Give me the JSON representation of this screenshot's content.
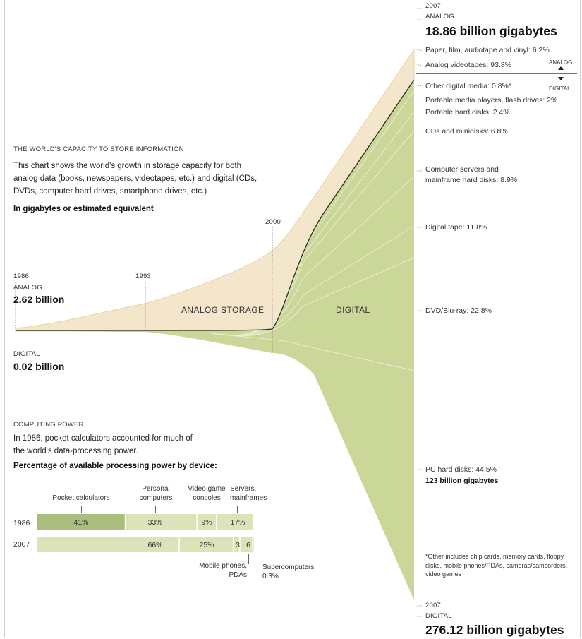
{
  "colors": {
    "analog_fill": "#f3e6cb",
    "analog_stroke": "#e8d4a8",
    "digital_fill": "#cbd699",
    "digital_line": "#2a2a18",
    "bar_dark": "#abbd7c",
    "bar_light": "#dbe3b9"
  },
  "storage": {
    "title": "THE WORLD'S CAPACITY TO STORE INFORMATION",
    "description": "This chart shows the world's growth in storage capacity for both analog data (books, newspapers, videotapes, etc.) and digital (CDs, DVDs, computer hard drives, smartphone drives, etc.)",
    "unit": "In gigabytes or estimated equivalent",
    "year_1986": "1986",
    "year_1993": "1993",
    "year_2000": "2000",
    "analog_word": "ANALOG",
    "digital_word": "DIGITAL",
    "start_analog_value": "2.62 billion",
    "start_digital_value": "0.02 billion",
    "analog_storage_label": "ANALOG STORAGE",
    "digital_label": "DIGITAL",
    "end_top_year": "2007",
    "end_top_word": "ANALOG",
    "end_analog_total": "18.86 billion gigabytes",
    "end_bottom_year": "2007",
    "end_bottom_word": "DIGITAL",
    "end_digital_total": "276.12 billion gigabytes",
    "divider_analog": "ANALOG",
    "divider_digital": "DIGITAL",
    "segments": [
      "Paper, film, audiotape and vinyl: 6.2%",
      "Analog videotapes: 93.8%",
      "Other digital media: 0.8%*",
      "Portable media players, flash drives: 2%",
      "Portable hard disks: 2.4%",
      "CDs and minidisks: 6.8%",
      "Computer servers and",
      "mainframe hard disks: 8.9%",
      "Digital tape: 11.8%",
      "DVD/Blu-ray: 22.8%",
      "PC hard disks: 44.5%"
    ],
    "pc_value": "123 billion gigabytes",
    "footnote": "*Other includes chip cards, memory cards, floppy disks, mobile phones/PDAs, cameras/camcorders, video games"
  },
  "computing": {
    "title": "COMPUTING POWER",
    "description": "In 1986, pocket calculators accounted for much of the world's data-processing power.",
    "subtitle": "Percentage of available processing power by device:",
    "headers": [
      "Pocket calculators",
      "Personal computers",
      "Video game consoles",
      "Servers, mainframes"
    ],
    "rows": [
      {
        "year": "1986",
        "labels": [
          "41%",
          "33%",
          "9%",
          "17%"
        ]
      },
      {
        "year": "2007",
        "labels": [
          "",
          "66%",
          "25%",
          "3",
          "6"
        ]
      }
    ],
    "mobile_label": "Mobile phones, PDAs",
    "super_label": "Supercomputers 0.3%"
  },
  "chart_data": [
    {
      "type": "area",
      "title": "THE WORLD'S CAPACITY TO STORE INFORMATION",
      "xlabel": "",
      "ylabel": "In gigabytes or estimated equivalent",
      "x": [
        1986,
        1993,
        2000,
        2007
      ],
      "series": [
        {
          "name": "ANALOG",
          "values_known": {
            "1986": 2.62,
            "2007": 18.86
          },
          "unit": "billion gigabytes"
        },
        {
          "name": "DIGITAL",
          "values_known": {
            "1986": 0.02,
            "2007": 276.12
          },
          "unit": "billion gigabytes"
        }
      ],
      "analog_2007_breakdown": [
        {
          "category": "Paper, film, audiotape and vinyl",
          "percent": 6.2
        },
        {
          "category": "Analog videotapes",
          "percent": 93.8
        }
      ],
      "digital_2007_breakdown": [
        {
          "category": "Other digital media",
          "percent": 0.8
        },
        {
          "category": "Portable media players, flash drives",
          "percent": 2
        },
        {
          "category": "Portable hard disks",
          "percent": 2.4
        },
        {
          "category": "CDs and minidisks",
          "percent": 6.8
        },
        {
          "category": "Computer servers and mainframe hard disks",
          "percent": 8.9
        },
        {
          "category": "Digital tape",
          "percent": 11.8
        },
        {
          "category": "DVD/Blu-ray",
          "percent": 22.8
        },
        {
          "category": "PC hard disks",
          "percent": 44.5
        }
      ]
    },
    {
      "type": "bar",
      "title": "COMPUTING POWER",
      "stacked": true,
      "orientation": "horizontal",
      "categories": [
        "1986",
        "2007"
      ],
      "series": [
        {
          "name": "Pocket calculators",
          "values": [
            41,
            0
          ]
        },
        {
          "name": "Personal computers",
          "values": [
            33,
            66
          ]
        },
        {
          "name": "Video game consoles",
          "values": [
            9,
            25
          ]
        },
        {
          "name": "Servers, mainframes",
          "values": [
            17,
            3
          ]
        },
        {
          "name": "Mobile phones, PDAs",
          "values": [
            0,
            6
          ]
        },
        {
          "name": "Supercomputers",
          "values": [
            0,
            0.3
          ]
        }
      ]
    }
  ]
}
